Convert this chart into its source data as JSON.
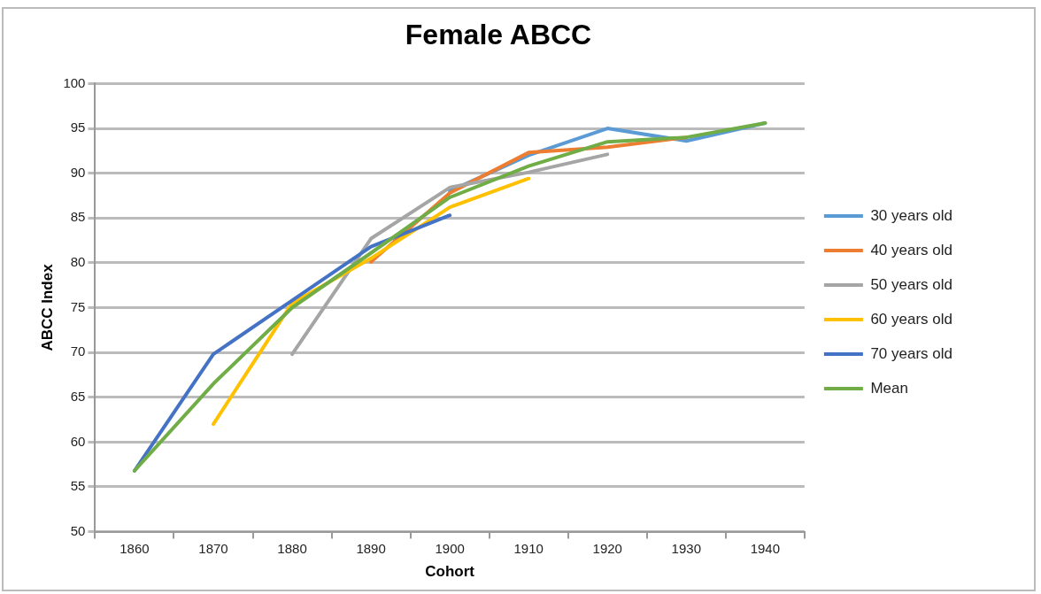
{
  "chart_data": {
    "type": "line",
    "title": "Female ABCC",
    "xlabel": "Cohort",
    "ylabel": "ABCC Index",
    "categories": [
      "1860",
      "1870",
      "1880",
      "1890",
      "1900",
      "1910",
      "1920",
      "1930",
      "1940"
    ],
    "series": [
      {
        "name": "30 years old",
        "color": "#5b9bd5",
        "values": [
          null,
          null,
          null,
          null,
          88,
          92,
          95,
          93.6,
          95.6
        ]
      },
      {
        "name": "40 years old",
        "color": "#ed7d31",
        "values": [
          null,
          null,
          null,
          80.1,
          87.8,
          92.3,
          92.9,
          94,
          null
        ]
      },
      {
        "name": "50 years old",
        "color": "#a5a5a5",
        "values": [
          null,
          null,
          69.8,
          82.7,
          88.4,
          90.1,
          92.1,
          null,
          null
        ]
      },
      {
        "name": "60 years old",
        "color": "#ffc000",
        "values": [
          null,
          62,
          75.5,
          80.5,
          86.2,
          89.4,
          null,
          null,
          null
        ]
      },
      {
        "name": "70 years old",
        "color": "#4472c4",
        "values": [
          56.8,
          69.8,
          75.8,
          81.8,
          85.3,
          null,
          null,
          null,
          null
        ]
      },
      {
        "name": "Mean",
        "color": "#70ad47",
        "values": [
          56.8,
          66.5,
          75,
          81.1,
          87.3,
          90.8,
          93.5,
          94,
          95.6
        ]
      }
    ],
    "ylim": [
      50,
      100
    ],
    "yticks": [
      50,
      55,
      60,
      65,
      70,
      75,
      80,
      85,
      90,
      95,
      100
    ],
    "grid": "y",
    "legend": "right",
    "marker": "none",
    "line_style": "solid"
  }
}
